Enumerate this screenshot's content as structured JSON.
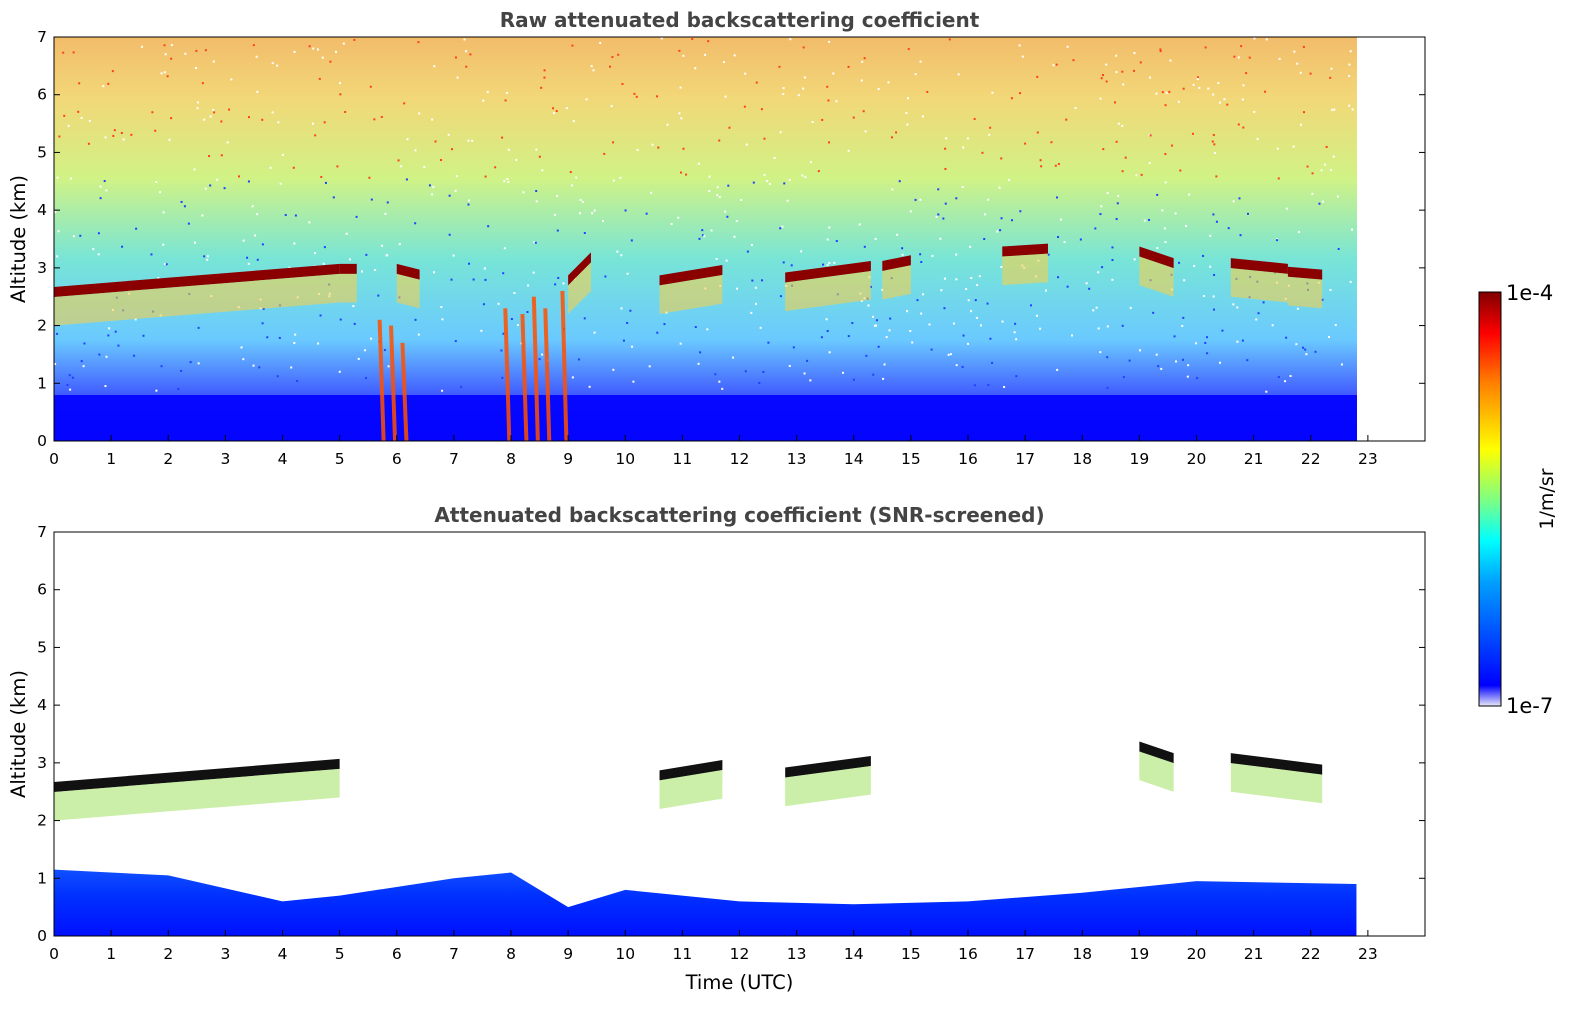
{
  "chart_data": [
    {
      "type": "heatmap",
      "title": "Raw attenuated backscattering coefficient",
      "xlabel": "",
      "ylabel": "Altitude (km)",
      "xlim": [
        0,
        24
      ],
      "ylim": [
        0,
        7
      ],
      "x_ticks": [
        "0",
        "1",
        "2",
        "3",
        "4",
        "5",
        "6",
        "7",
        "8",
        "9",
        "10",
        "11",
        "12",
        "13",
        "14",
        "15",
        "16",
        "17",
        "18",
        "19",
        "20",
        "21",
        "22",
        "23"
      ],
      "y_ticks": [
        "0",
        "1",
        "2",
        "3",
        "4",
        "5",
        "6",
        "7"
      ],
      "data_end_time": 22.8,
      "cloud_layers": [
        {
          "t_start": 0.0,
          "t_end": 5.0,
          "alt_start": 2.6,
          "alt_end": 3.0
        },
        {
          "t_start": 5.0,
          "t_end": 5.3,
          "alt_start": 3.0,
          "alt_end": 3.0
        },
        {
          "t_start": 6.0,
          "t_end": 6.4,
          "alt_start": 3.0,
          "alt_end": 2.9
        },
        {
          "t_start": 9.0,
          "t_end": 9.4,
          "alt_start": 2.8,
          "alt_end": 3.2
        },
        {
          "t_start": 10.6,
          "t_end": 11.7,
          "alt_start": 2.8,
          "alt_end": 2.98
        },
        {
          "t_start": 12.8,
          "t_end": 14.3,
          "alt_start": 2.85,
          "alt_end": 3.05
        },
        {
          "t_start": 14.5,
          "t_end": 15.0,
          "alt_start": 3.05,
          "alt_end": 3.15
        },
        {
          "t_start": 16.6,
          "t_end": 17.4,
          "alt_start": 3.3,
          "alt_end": 3.35
        },
        {
          "t_start": 19.0,
          "t_end": 19.6,
          "alt_start": 3.3,
          "alt_end": 3.1
        },
        {
          "t_start": 20.6,
          "t_end": 21.6,
          "alt_start": 3.1,
          "alt_end": 3.0
        },
        {
          "t_start": 21.6,
          "t_end": 22.2,
          "alt_start": 2.95,
          "alt_end": 2.9
        }
      ],
      "precip_streaks": [
        {
          "t": 5.7,
          "top": 2.1
        },
        {
          "t": 5.9,
          "top": 2.0
        },
        {
          "t": 6.1,
          "top": 1.7
        },
        {
          "t": 7.9,
          "top": 2.3
        },
        {
          "t": 8.2,
          "top": 2.2
        },
        {
          "t": 8.4,
          "top": 2.5
        },
        {
          "t": 8.6,
          "top": 2.3
        },
        {
          "t": 8.9,
          "top": 2.6
        }
      ]
    },
    {
      "type": "heatmap",
      "title": "Attenuated backscattering coefficient (SNR-screened)",
      "xlabel": "Time (UTC)",
      "ylabel": "Altitude (km)",
      "xlim": [
        0,
        24
      ],
      "ylim": [
        0,
        7
      ],
      "x_ticks": [
        "0",
        "1",
        "2",
        "3",
        "4",
        "5",
        "6",
        "7",
        "8",
        "9",
        "10",
        "11",
        "12",
        "13",
        "14",
        "15",
        "16",
        "17",
        "18",
        "19",
        "20",
        "21",
        "22",
        "23"
      ],
      "y_ticks": [
        "0",
        "1",
        "2",
        "3",
        "4",
        "5",
        "6",
        "7"
      ],
      "data_end_time": 22.8,
      "boundary_layer_top": [
        {
          "t": 0,
          "alt": 1.15
        },
        {
          "t": 2,
          "alt": 1.05
        },
        {
          "t": 4,
          "alt": 0.6
        },
        {
          "t": 5,
          "alt": 0.7
        },
        {
          "t": 7,
          "alt": 1.0
        },
        {
          "t": 8,
          "alt": 1.1
        },
        {
          "t": 9,
          "alt": 0.5
        },
        {
          "t": 10,
          "alt": 0.8
        },
        {
          "t": 12,
          "alt": 0.6
        },
        {
          "t": 14,
          "alt": 0.55
        },
        {
          "t": 16,
          "alt": 0.6
        },
        {
          "t": 18,
          "alt": 0.75
        },
        {
          "t": 20,
          "alt": 0.95
        },
        {
          "t": 22.8,
          "alt": 0.9
        }
      ],
      "cloud_layers": [
        {
          "t_start": 0.0,
          "t_end": 5.0,
          "alt_start": 2.6,
          "alt_end": 3.0
        },
        {
          "t_start": 10.6,
          "t_end": 11.7,
          "alt_start": 2.8,
          "alt_end": 2.98
        },
        {
          "t_start": 12.8,
          "t_end": 14.3,
          "alt_start": 2.85,
          "alt_end": 3.05
        },
        {
          "t_start": 19.0,
          "t_end": 19.6,
          "alt_start": 3.3,
          "alt_end": 3.1
        },
        {
          "t_start": 20.6,
          "t_end": 22.2,
          "alt_start": 3.1,
          "alt_end": 2.9
        }
      ]
    }
  ],
  "colorbar": {
    "label": "1/m/sr",
    "max_label": "1e-4",
    "min_label": "1e-7",
    "scale": "log",
    "range": [
      1e-07,
      0.0001
    ],
    "colors": [
      "#e8e8f8",
      "#0000ff",
      "#00a0ff",
      "#00ffff",
      "#80ff80",
      "#ffff00",
      "#ff8000",
      "#ff0000",
      "#800000"
    ]
  }
}
